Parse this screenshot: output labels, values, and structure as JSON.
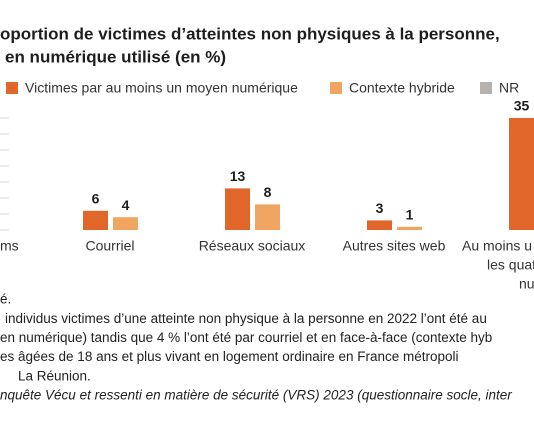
{
  "chart_data": {
    "type": "bar",
    "title_lines": [
      "oportion de victimes d’atteintes non physiques à la personne,",
      "en numérique utilisé (en %)"
    ],
    "categories": [
      [
        "ms"
      ],
      [
        "Courriel"
      ],
      [
        "Réseaux sociaux"
      ],
      [
        "Autres sites web"
      ],
      [
        "Au moins u",
        "les quat",
        "nu"
      ]
    ],
    "series": [
      {
        "name": "Victimes par au moins un moyen numérique",
        "color": "#e0662a",
        "values": [
          null,
          6,
          13,
          3,
          35
        ]
      },
      {
        "name": "Contexte hybride",
        "color": "#f0a660",
        "values": [
          null,
          4,
          8,
          1,
          null
        ]
      },
      {
        "name": "NR",
        "color": "#b7b2ae",
        "values": [
          null,
          null,
          null,
          null,
          null
        ]
      }
    ],
    "ylim": [
      0,
      35
    ],
    "yticks": [
      0,
      5,
      10,
      15,
      20,
      25,
      30,
      35
    ],
    "grid": true,
    "notes": [
      "é.",
      "individus victimes d’une atteinte non physique à la personne en 2022 l’ont été au",
      "en numérique) tandis que 4 % l’ont été par courriel et en face-à-face (contexte hyb",
      "es âgées de 18 ans et plus vivant en logement ordinaire en France métropoli",
      "La Réunion.",
      "nquête Vécu et ressenti en matière de sécurité (VRS) 2023 (questionnaire socle, inter"
    ]
  }
}
